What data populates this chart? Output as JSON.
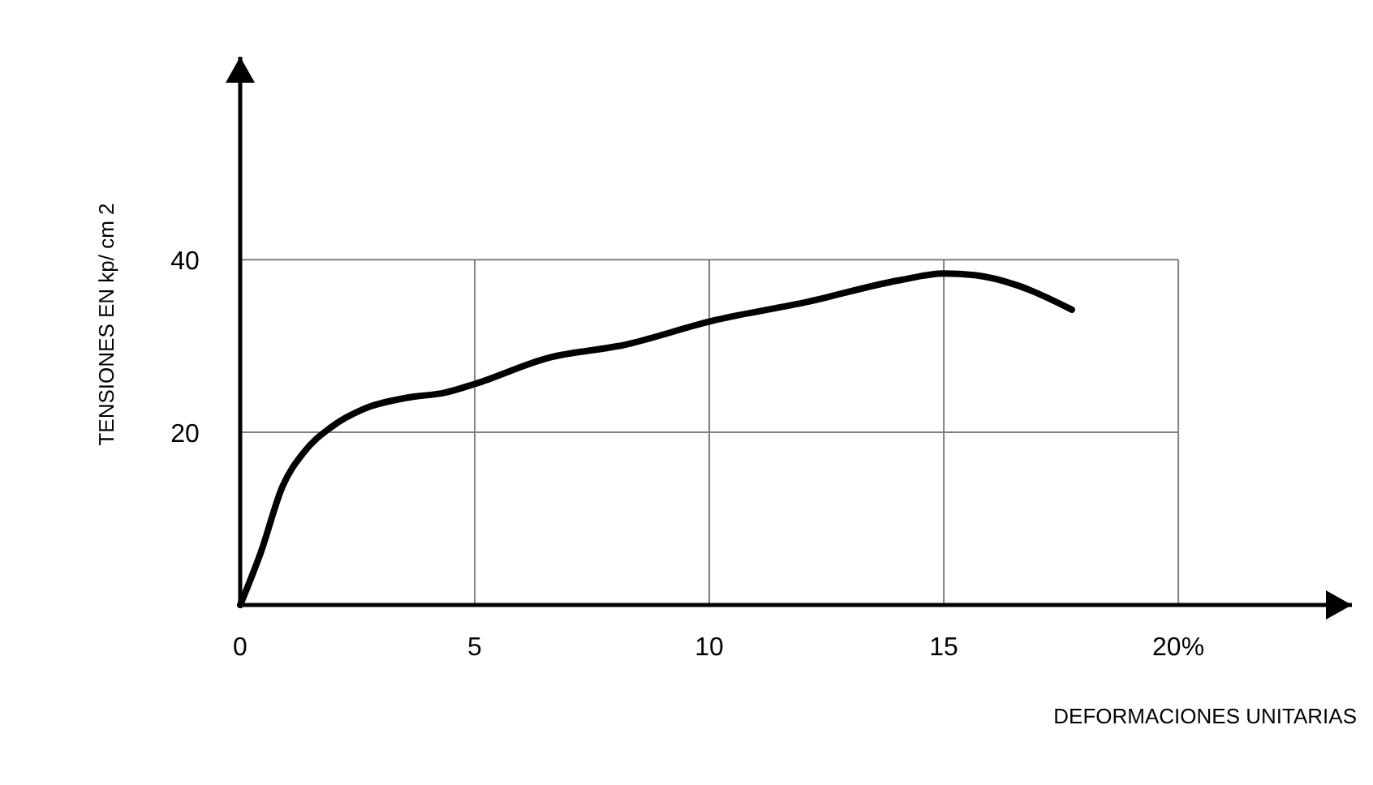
{
  "chart_data": {
    "type": "line",
    "xlabel": "DEFORMACIONES UNITARIAS",
    "ylabel": "TENSIONES EN kp/ cm 2",
    "x": [
      0,
      0.44,
      0.9,
      1.36,
      1.94,
      2.63,
      3.55,
      4.37,
      5.0,
      6.55,
      8.17,
      10.13,
      12.08,
      14.04,
      15.0,
      15.66,
      16.58,
      17.73
    ],
    "series": [
      {
        "color": "#000000",
        "values": [
          0,
          6.1,
          13.7,
          17.7,
          20.6,
          22.7,
          24.0,
          24.6,
          25.6,
          28.6,
          30.1,
          33.0,
          35.1,
          37.6,
          38.4,
          38.2,
          37.0,
          34.2
        ]
      }
    ],
    "xlim": [
      0,
      23.7
    ],
    "ylim": [
      0,
      63.5
    ],
    "xticks": [
      0,
      5,
      10,
      15,
      {
        "value": 20,
        "label": "20%"
      }
    ],
    "yticks": [
      20,
      40
    ],
    "ref_lines": [
      {
        "axis": "x",
        "value": 5,
        "color": "#808080"
      },
      {
        "axis": "x",
        "value": 10,
        "color": "#808080"
      },
      {
        "axis": "x",
        "value": 15,
        "color": "#808080"
      },
      {
        "axis": "x",
        "value": 20,
        "color": "#808080"
      },
      {
        "axis": "y",
        "value": 20,
        "color": "#808080"
      },
      {
        "axis": "y",
        "value": 40,
        "color": "#808080"
      }
    ],
    "marker": "none",
    "line_style": "solid"
  }
}
